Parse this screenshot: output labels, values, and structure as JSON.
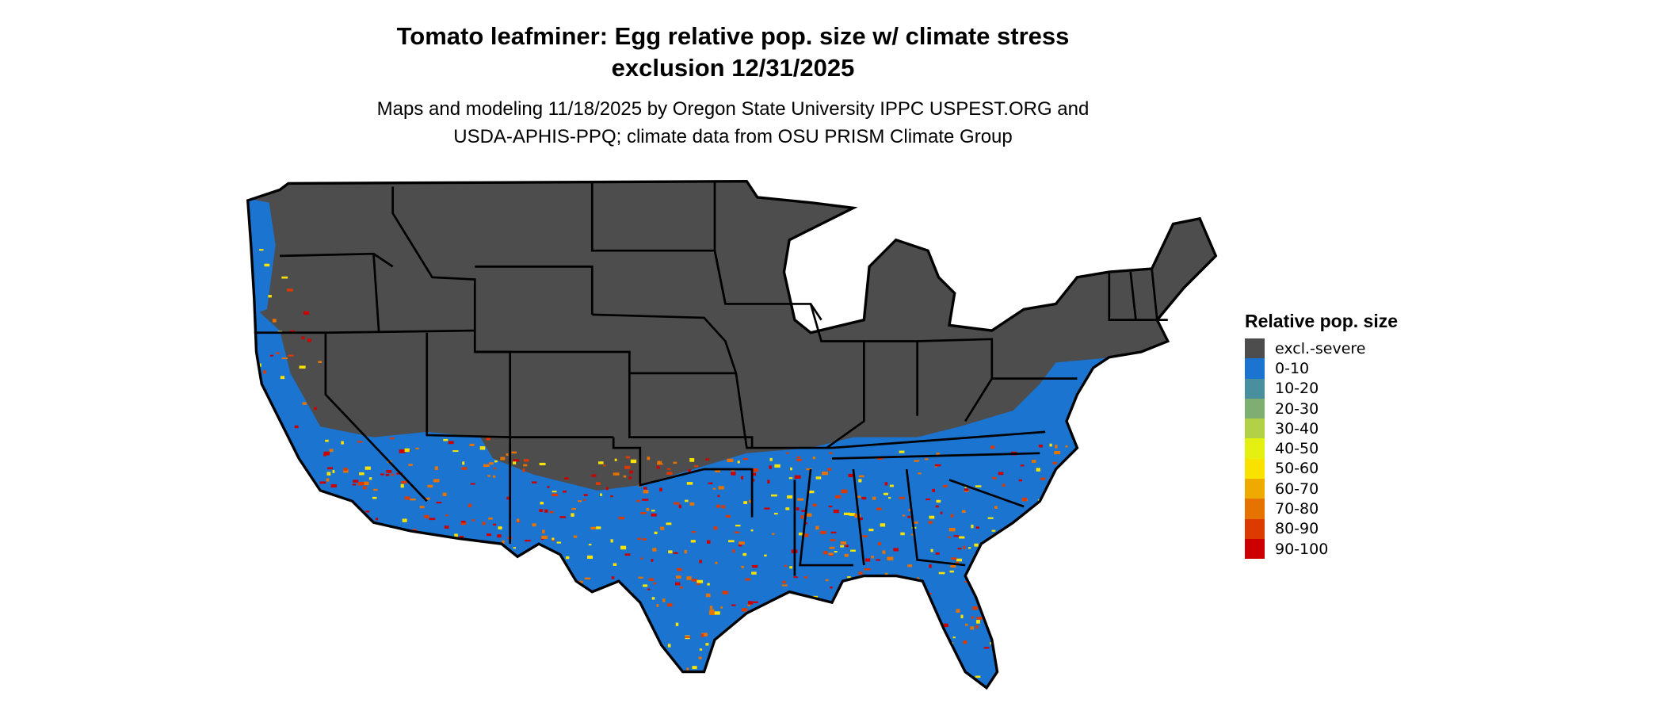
{
  "title": {
    "line1": "Tomato leafminer: Egg relative pop. size w/ climate stress",
    "line2": "exclusion 12/31/2025"
  },
  "subtitle": {
    "line1": "Maps and modeling 11/18/2025 by Oregon State University IPPC USPEST.ORG and",
    "line2": "USDA-APHIS-PPQ; climate data from OSU PRISM Climate Group"
  },
  "legend": {
    "title": "Relative pop. size",
    "items": [
      {
        "label": "excl.-severe",
        "color": "#4d4d4d"
      },
      {
        "label": "0-10",
        "color": "#1b74d0"
      },
      {
        "label": "10-20",
        "color": "#4a8f9e"
      },
      {
        "label": "20-30",
        "color": "#7eae72"
      },
      {
        "label": "30-40",
        "color": "#b2d146"
      },
      {
        "label": "40-50",
        "color": "#e3f012"
      },
      {
        "label": "50-60",
        "color": "#f9e200"
      },
      {
        "label": "60-70",
        "color": "#efaa00"
      },
      {
        "label": "70-80",
        "color": "#e67200"
      },
      {
        "label": "80-90",
        "color": "#dd3a00"
      },
      {
        "label": "90-100",
        "color": "#cd0000"
      }
    ]
  },
  "map": {
    "region": "Contiguous United States",
    "excluded_color": "#4d4d4d",
    "border_color": "#000000"
  }
}
